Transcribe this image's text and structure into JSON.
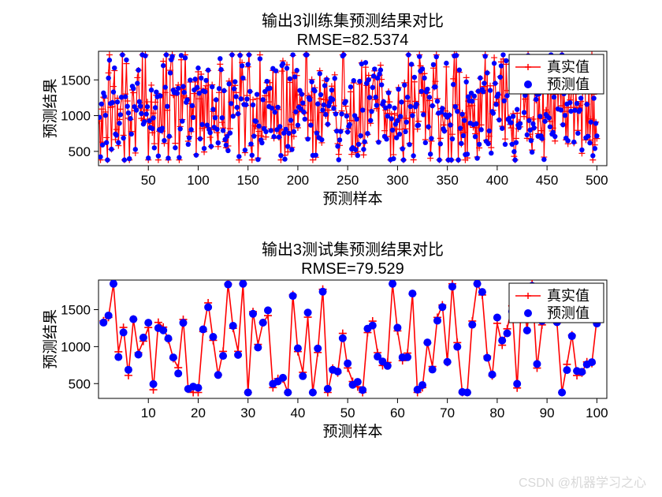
{
  "watermark": "CSDN @机器学习之心",
  "background_color": "#ffffff",
  "axis_color": "#000000",
  "grid_color": "#e0e0e0",
  "text_color": "#000000",
  "title_fontsize": 20,
  "subtitle_fontsize": 20,
  "label_fontsize": 19,
  "tick_fontsize": 17,
  "legend_fontsize": 18,
  "chart1": {
    "title": "输出3训练集预测结果对比",
    "subtitle": "RMSE=82.5374",
    "xlabel": "预测样本",
    "ylabel": "预测结果",
    "xlim": [
      0,
      510
    ],
    "ylim": [
      300,
      1900
    ],
    "xticks": [
      50,
      100,
      150,
      200,
      250,
      300,
      350,
      400,
      450,
      500
    ],
    "yticks": [
      500,
      1000,
      1500
    ],
    "legend": {
      "true_label": "真实值",
      "pred_label": "预测值"
    },
    "true_color": "#ff0000",
    "pred_color": "#0000ff",
    "line_width": 1.2,
    "marker_size": 3.2,
    "marker_plus_size": 4,
    "n": 500,
    "seed": 12345
  },
  "chart2": {
    "title": "输出3测试集预测结果对比",
    "subtitle": "RMSE=79.529",
    "xlabel": "预测样本",
    "ylabel": "预测结果",
    "xlim": [
      0,
      102
    ],
    "ylim": [
      300,
      1900
    ],
    "xticks": [
      10,
      20,
      30,
      40,
      50,
      60,
      70,
      80,
      90,
      100
    ],
    "yticks": [
      500,
      1000,
      1500
    ],
    "legend": {
      "true_label": "真实值",
      "pred_label": "预测值"
    },
    "true_color": "#ff0000",
    "pred_color": "#0000ff",
    "line_width": 1.6,
    "marker_size": 5,
    "marker_plus_size": 5,
    "n": 100,
    "seed": 67890
  }
}
